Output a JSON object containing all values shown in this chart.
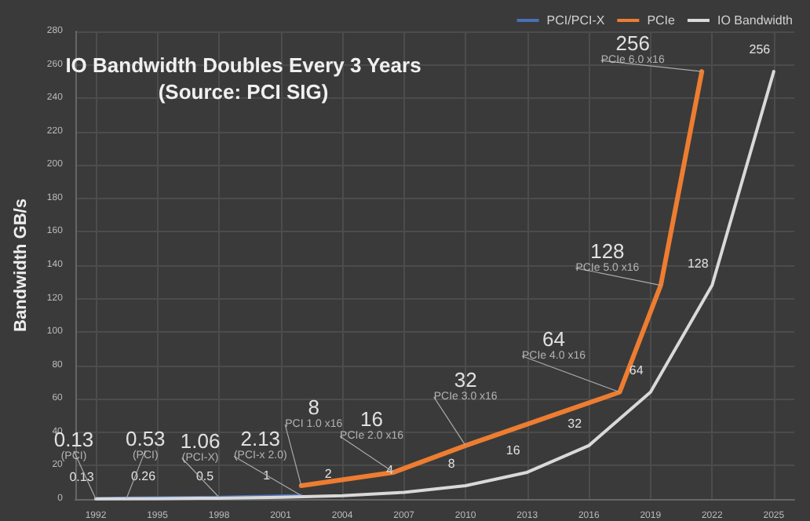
{
  "chart_data": {
    "type": "line",
    "title": "IO Bandwidth Doubles Every 3 Years",
    "subtitle": "(Source: PCI SIG)",
    "ylabel": "Bandwidth GB/s",
    "xlim": [
      1991,
      2026
    ],
    "xticks": [
      1992,
      1995,
      1998,
      2001,
      2004,
      2007,
      2010,
      2013,
      2016,
      2019,
      2022,
      2025
    ],
    "ylim": [
      0,
      280
    ],
    "yticks": [
      0,
      20,
      40,
      60,
      80,
      100,
      120,
      140,
      160,
      180,
      200,
      220,
      240,
      260,
      280
    ],
    "series": [
      {
        "name": "PCI/PCI-X",
        "color": "#4a6fb5",
        "x": [
          1992,
          1993.5,
          1998,
          2002
        ],
        "values": [
          0.13,
          0.53,
          1.06,
          2.13
        ],
        "value_labels": [
          "0.13",
          "0.53",
          "1.06",
          "2.13"
        ]
      },
      {
        "name": "PCIe",
        "color": "#ed7d31",
        "x": [
          2002,
          2006.5,
          2010,
          2017.5,
          2019.5,
          2021.5
        ],
        "values": [
          8,
          16,
          32,
          64,
          128,
          256
        ],
        "value_labels": [
          "8",
          "16",
          "32",
          "64",
          "128",
          "256"
        ]
      },
      {
        "name": "IO Bandwidth",
        "color": "#d9d9d9",
        "x": [
          1992,
          1995,
          1998,
          2001,
          2004,
          2007,
          2010,
          2013,
          2016,
          2019,
          2022,
          2025
        ],
        "values": [
          0.13,
          0.26,
          0.5,
          1,
          2,
          4,
          8,
          16,
          32,
          64,
          128,
          256
        ],
        "value_labels": [
          "0.13",
          "0.26",
          "0.5",
          "1",
          "2",
          "4",
          "8",
          "16",
          "32",
          "64",
          "128",
          "256"
        ]
      }
    ],
    "annotations": [
      {
        "text": "(PCI)",
        "x": 1992,
        "y": 0.13
      },
      {
        "text": "(PCI)",
        "x": 1993.5,
        "y": 0.53
      },
      {
        "text": "(PCI-X)",
        "x": 1998,
        "y": 1.06
      },
      {
        "text": "(PCI-x 2.0)",
        "x": 2002,
        "y": 2.13
      },
      {
        "text": "PCI 1.0 x16",
        "x": 2002,
        "y": 8
      },
      {
        "text": "PCIe 2.0 x16",
        "x": 2006.5,
        "y": 16
      },
      {
        "text": "PCIe 3.0 x16",
        "x": 2010,
        "y": 32
      },
      {
        "text": "PCIe 4.0 x16",
        "x": 2017.5,
        "y": 64
      },
      {
        "text": "PCIe 5.0 x16",
        "x": 2019.5,
        "y": 128
      },
      {
        "text": "PCIe 6.0 x16",
        "x": 2021.5,
        "y": 256
      }
    ],
    "grid": true,
    "legend": "top right",
    "marker": "none",
    "line_style": "solid"
  }
}
